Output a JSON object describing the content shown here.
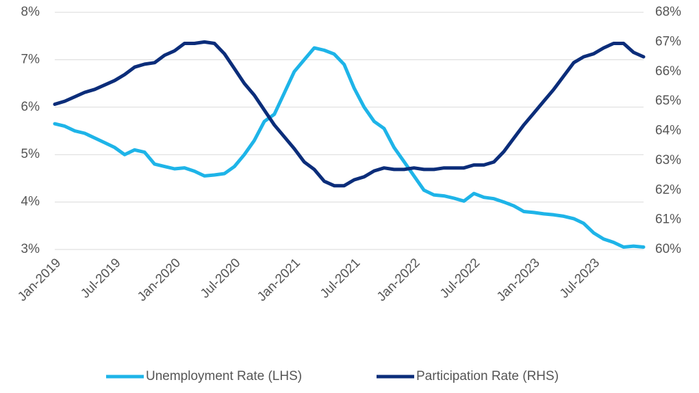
{
  "chart_data": {
    "type": "line",
    "categories": [
      "Jan-2019",
      null,
      null,
      null,
      null,
      null,
      "Jul-2019",
      null,
      null,
      null,
      null,
      null,
      "Jan-2020",
      null,
      null,
      null,
      null,
      null,
      "Jul-2020",
      null,
      null,
      null,
      null,
      null,
      "Jan-2021",
      null,
      null,
      null,
      null,
      null,
      "Jul-2021",
      null,
      null,
      null,
      null,
      null,
      "Jan-2022",
      null,
      null,
      null,
      null,
      null,
      "Jul-2022",
      null,
      null,
      null,
      null,
      null,
      "Jan-2023",
      null,
      null,
      null,
      null,
      null,
      "Jul-2023",
      null,
      null,
      null,
      null,
      null
    ],
    "series": [
      {
        "name": "Unemployment Rate (LHS)",
        "color": "#1eb4e8",
        "axis": "y",
        "values": [
          5.65,
          5.6,
          5.5,
          5.45,
          5.35,
          5.25,
          5.15,
          5.0,
          5.1,
          5.05,
          4.8,
          4.75,
          4.7,
          4.72,
          4.65,
          4.55,
          4.57,
          4.6,
          4.75,
          5.0,
          5.3,
          5.7,
          5.85,
          6.3,
          6.75,
          7.0,
          7.25,
          7.2,
          7.12,
          6.9,
          6.4,
          6.0,
          5.7,
          5.55,
          5.15,
          4.85,
          4.55,
          4.25,
          4.15,
          4.13,
          4.08,
          4.02,
          4.18,
          4.1,
          4.07,
          4.0,
          3.92,
          3.8,
          3.78,
          3.75,
          3.73,
          3.7,
          3.65,
          3.55,
          3.35,
          3.22,
          3.15,
          3.05,
          3.07,
          3.05
        ]
      },
      {
        "name": "Participation Rate (RHS)",
        "color": "#0b2d7a",
        "axis": "y2",
        "values": [
          64.9,
          65.0,
          65.15,
          65.3,
          65.4,
          65.55,
          65.7,
          65.9,
          66.15,
          66.25,
          66.3,
          66.55,
          66.7,
          66.95,
          66.95,
          67.0,
          66.95,
          66.6,
          66.1,
          65.6,
          65.2,
          64.7,
          64.2,
          63.8,
          63.4,
          62.95,
          62.7,
          62.3,
          62.15,
          62.15,
          62.35,
          62.45,
          62.65,
          62.75,
          62.7,
          62.7,
          62.75,
          62.7,
          62.7,
          62.75,
          62.75,
          62.75,
          62.85,
          62.85,
          62.95,
          63.3,
          63.75,
          64.2,
          64.6,
          65.0,
          65.4,
          65.85,
          66.3,
          66.5,
          66.6,
          66.8,
          66.95,
          66.95,
          66.65,
          66.5
        ]
      }
    ],
    "ylim": [
      3,
      8
    ],
    "yticks": [
      {
        "value": 3,
        "label": "3%"
      },
      {
        "value": 4,
        "label": "4%"
      },
      {
        "value": 5,
        "label": "5%"
      },
      {
        "value": 6,
        "label": "6%"
      },
      {
        "value": 7,
        "label": "7%"
      },
      {
        "value": 8,
        "label": "8%"
      }
    ],
    "y2lim": [
      60,
      68
    ],
    "y2ticks": [
      {
        "value": 60,
        "label": "60%"
      },
      {
        "value": 61,
        "label": "61%"
      },
      {
        "value": 62,
        "label": "62%"
      },
      {
        "value": 63,
        "label": "63%"
      },
      {
        "value": 64,
        "label": "64%"
      },
      {
        "value": 65,
        "label": "65%"
      },
      {
        "value": 66,
        "label": "66%"
      },
      {
        "value": 67,
        "label": "67%"
      },
      {
        "value": 68,
        "label": "68%"
      }
    ],
    "grid": true,
    "legend": "bottom"
  }
}
